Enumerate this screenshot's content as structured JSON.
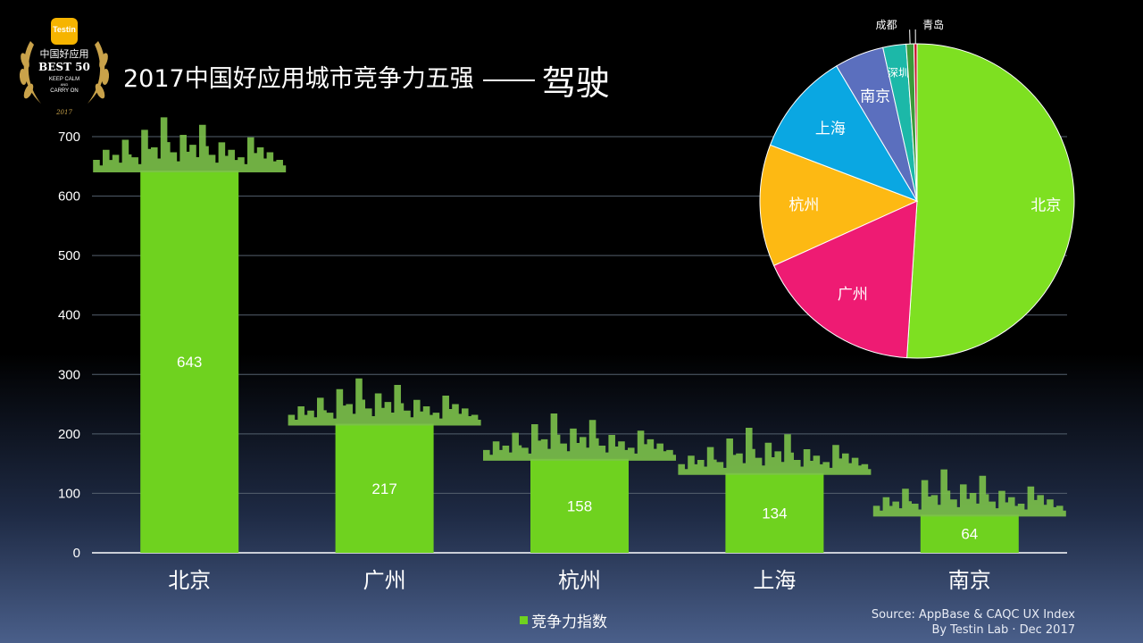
{
  "title": {
    "main": "2017中国好应用城市竞争力五强",
    "sub": "驾驶"
  },
  "badge": {
    "brand": "Testin",
    "line1": "中国好应用",
    "line2": "BEST 50",
    "line3": "KEEP CALM",
    "line4": "AND",
    "line5": "CARRY ON",
    "year": "2017"
  },
  "legend": {
    "label": "竞争力指数"
  },
  "source": {
    "line1": "Source: AppBase & CAQC UX Index",
    "line2": "By Testin Lab · Dec 2017"
  },
  "colors": {
    "bar": "#6fd21f",
    "skyline": "#7cc24a",
    "grid": "#55606e"
  },
  "chart_data": [
    {
      "type": "bar",
      "categories": [
        "北京",
        "广州",
        "杭州",
        "上海",
        "南京"
      ],
      "values": [
        643,
        217,
        158,
        134,
        64
      ],
      "series": [
        {
          "name": "竞争力指数",
          "values": [
            643,
            217,
            158,
            134,
            64
          ]
        }
      ],
      "ylim": [
        0,
        700
      ],
      "yticks": [
        0,
        100,
        200,
        300,
        400,
        500,
        600,
        700
      ],
      "grid": true,
      "legend": "bottom"
    },
    {
      "type": "pie",
      "labels": [
        "北京",
        "广州",
        "杭州",
        "上海",
        "南京",
        "深圳",
        "成都",
        "青岛"
      ],
      "values": [
        643,
        217,
        158,
        134,
        64,
        30,
        10,
        4
      ],
      "colors": [
        "#7ee021",
        "#ee1b73",
        "#fdb913",
        "#0aa7e2",
        "#5b6fbe",
        "#1cb8a8",
        "#3a9a3a",
        "#c8102e"
      ]
    }
  ]
}
